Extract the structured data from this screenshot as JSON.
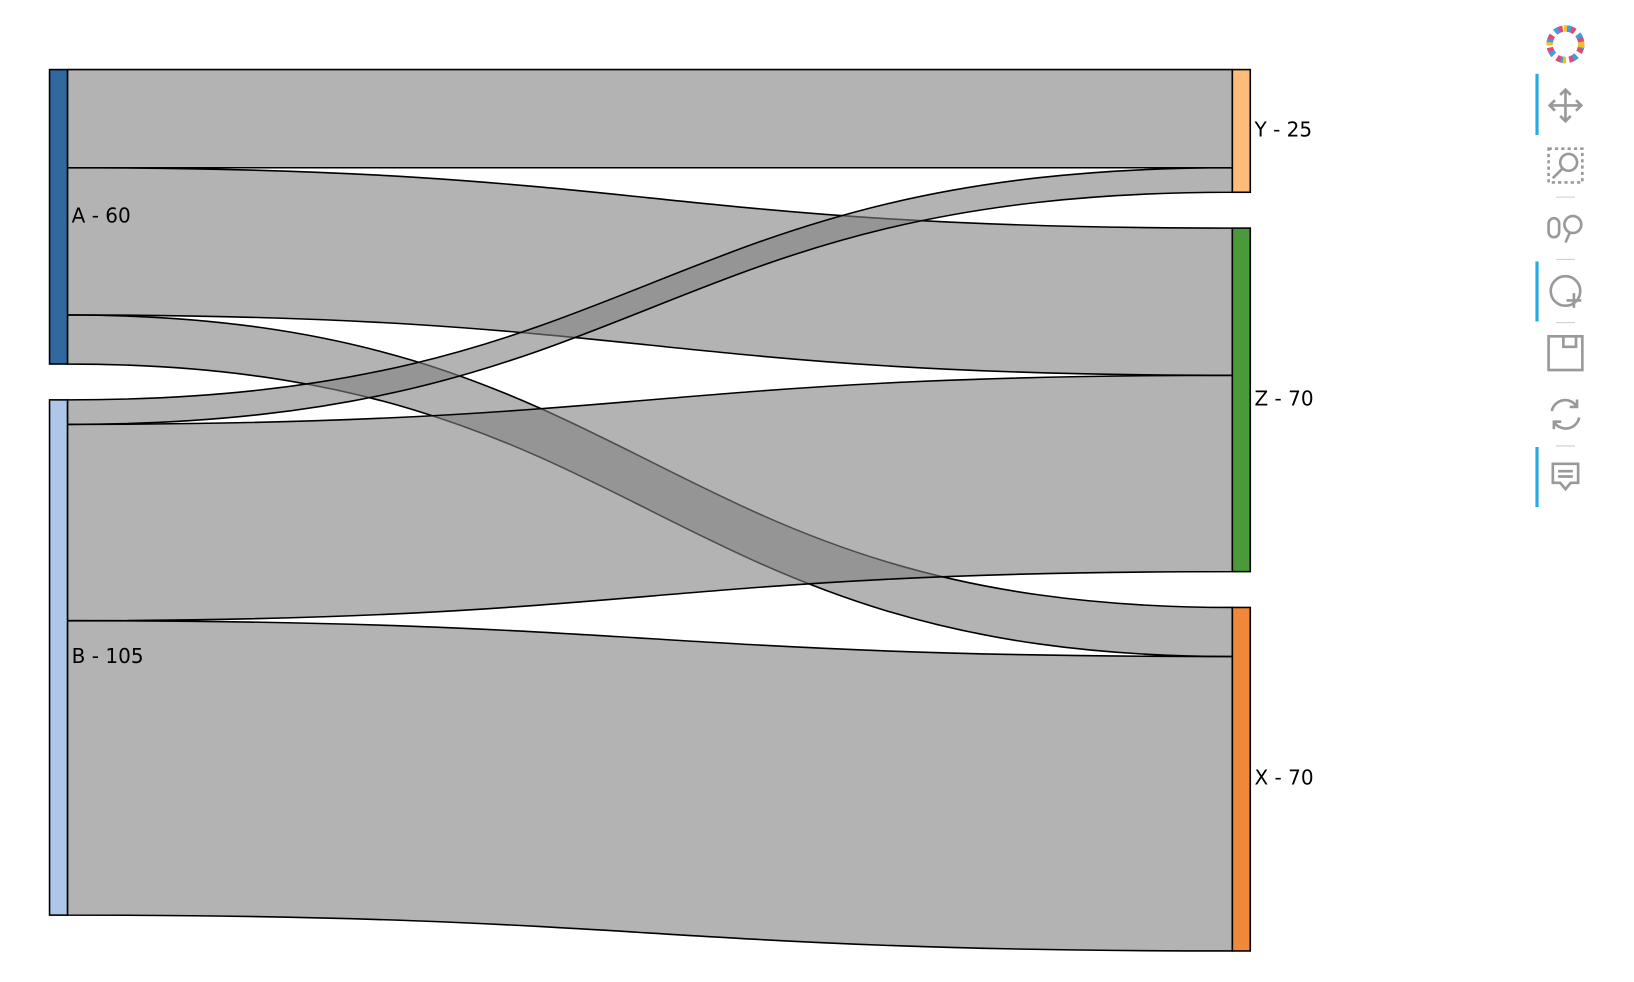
{
  "chart_data": {
    "type": "sankey",
    "nodes": [
      {
        "label": "A - 60",
        "color": "#30689f"
      },
      {
        "label": "B - 105",
        "color": "#aec7e8"
      },
      {
        "label": "Y - 25",
        "color": "#ffbb78"
      },
      {
        "label": "Z - 70",
        "color": "#4a9a3a"
      },
      {
        "label": "X - 70",
        "color": "#f0883a"
      }
    ],
    "links": [
      {
        "source": 0,
        "target": 2,
        "value": 20
      },
      {
        "source": 0,
        "target": 3,
        "value": 30
      },
      {
        "source": 0,
        "target": 4,
        "value": 10
      },
      {
        "source": 1,
        "target": 2,
        "value": 5
      },
      {
        "source": 1,
        "target": 3,
        "value": 40
      },
      {
        "source": 1,
        "target": 4,
        "value": 60
      }
    ],
    "link_color": "#808080"
  }
}
